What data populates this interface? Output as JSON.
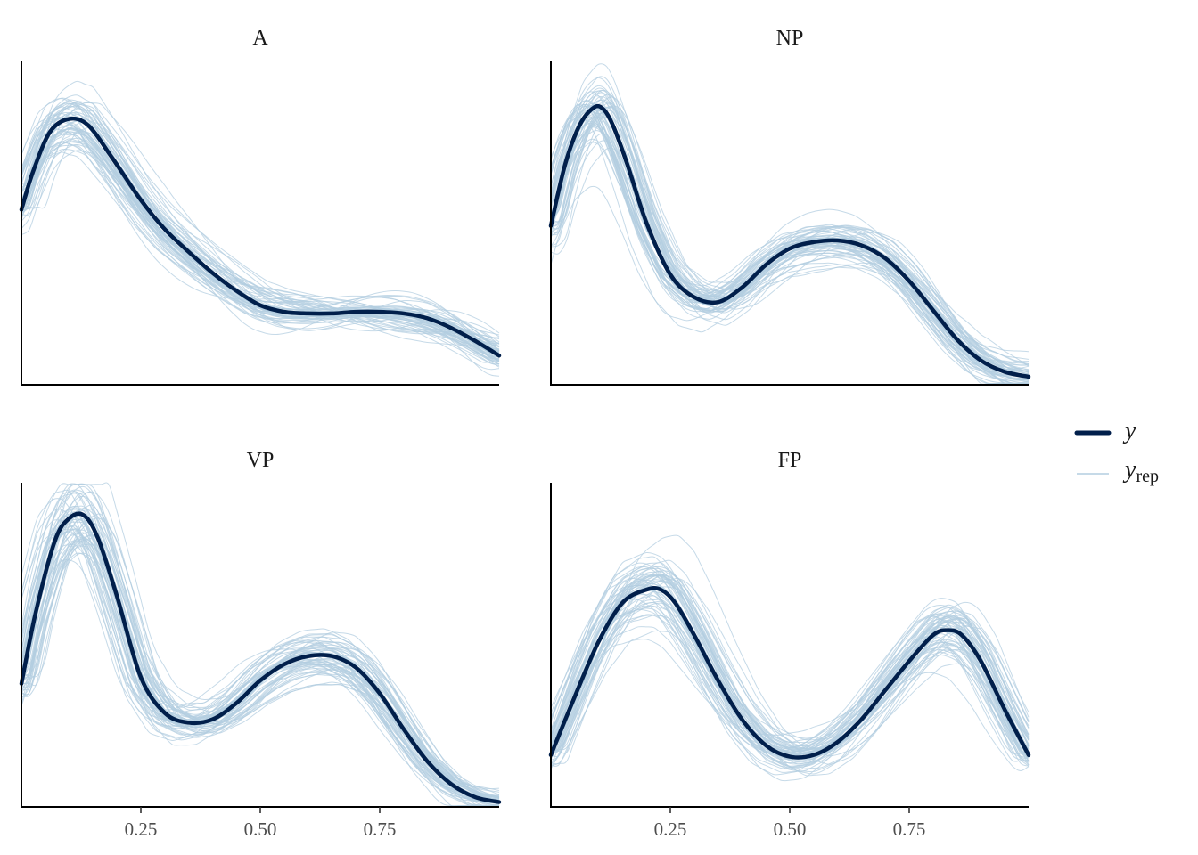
{
  "chart_data": {
    "type": "line",
    "x_range": [
      0,
      1
    ],
    "x_ticks": [
      0.25,
      0.5,
      0.75
    ],
    "x_tick_labels": [
      "0.25",
      "0.50",
      "0.75"
    ],
    "y_axis_labels_shown": false,
    "grid": false,
    "legend": {
      "placement": "right",
      "entries": [
        {
          "key": "y",
          "label": "y",
          "subscript": "",
          "color": "#011f4b"
        },
        {
          "key": "y_rep",
          "label": "y",
          "subscript": "rep",
          "color": "#b3cde0"
        }
      ]
    },
    "replicate_count": 60,
    "panels": [
      {
        "title": "A",
        "y_range": [
          0,
          1
        ],
        "x": [
          0,
          0.025,
          0.06,
          0.1,
          0.14,
          0.19,
          0.25,
          0.3,
          0.35,
          0.4,
          0.45,
          0.5,
          0.55,
          0.6,
          0.65,
          0.7,
          0.75,
          0.8,
          0.85,
          0.9,
          0.95,
          1.0
        ],
        "y": [
          0.54,
          0.66,
          0.78,
          0.82,
          0.8,
          0.7,
          0.57,
          0.48,
          0.41,
          0.345,
          0.29,
          0.245,
          0.225,
          0.22,
          0.22,
          0.225,
          0.225,
          0.22,
          0.205,
          0.175,
          0.135,
          0.09
        ]
      },
      {
        "title": "NP",
        "y_range": [
          0,
          1
        ],
        "x": [
          0,
          0.03,
          0.06,
          0.09,
          0.11,
          0.13,
          0.16,
          0.2,
          0.25,
          0.3,
          0.35,
          0.4,
          0.45,
          0.5,
          0.55,
          0.6,
          0.65,
          0.7,
          0.75,
          0.8,
          0.85,
          0.9,
          0.95,
          1.0
        ],
        "y": [
          0.49,
          0.68,
          0.8,
          0.855,
          0.85,
          0.8,
          0.68,
          0.5,
          0.34,
          0.27,
          0.255,
          0.3,
          0.37,
          0.42,
          0.44,
          0.445,
          0.43,
          0.39,
          0.32,
          0.23,
          0.14,
          0.075,
          0.04,
          0.025
        ]
      },
      {
        "title": "VP",
        "y_range": [
          0,
          1
        ],
        "x": [
          0,
          0.03,
          0.07,
          0.1,
          0.13,
          0.16,
          0.2,
          0.25,
          0.3,
          0.35,
          0.4,
          0.45,
          0.5,
          0.55,
          0.6,
          0.65,
          0.7,
          0.75,
          0.8,
          0.85,
          0.9,
          0.95,
          1.0
        ],
        "y": [
          0.38,
          0.6,
          0.82,
          0.89,
          0.9,
          0.83,
          0.65,
          0.4,
          0.29,
          0.26,
          0.27,
          0.32,
          0.39,
          0.44,
          0.465,
          0.465,
          0.43,
          0.35,
          0.24,
          0.14,
          0.07,
          0.03,
          0.015
        ]
      },
      {
        "title": "FP",
        "y_range": [
          0,
          1
        ],
        "x": [
          0,
          0.05,
          0.1,
          0.15,
          0.2,
          0.23,
          0.26,
          0.3,
          0.35,
          0.4,
          0.45,
          0.5,
          0.55,
          0.6,
          0.65,
          0.7,
          0.75,
          0.8,
          0.83,
          0.86,
          0.9,
          0.95,
          1.0
        ],
        "y": [
          0.16,
          0.34,
          0.51,
          0.63,
          0.67,
          0.67,
          0.63,
          0.53,
          0.39,
          0.27,
          0.19,
          0.155,
          0.16,
          0.2,
          0.27,
          0.36,
          0.45,
          0.53,
          0.545,
          0.53,
          0.45,
          0.3,
          0.16
        ]
      }
    ]
  }
}
